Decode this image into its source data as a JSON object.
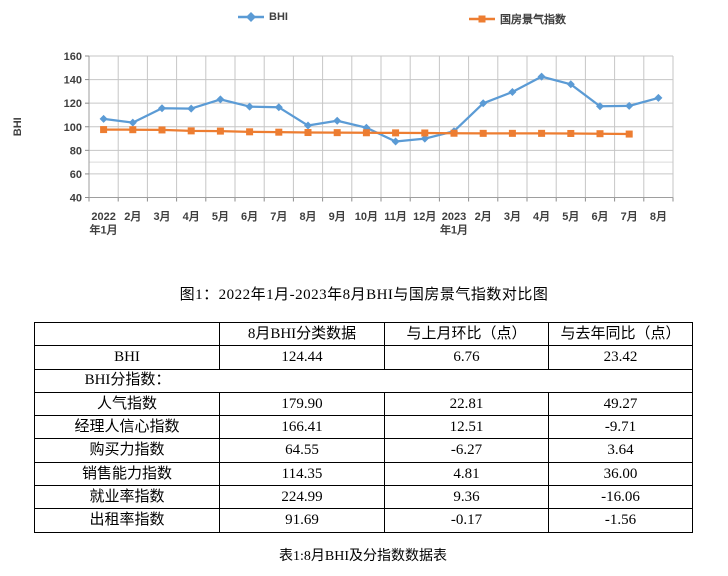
{
  "chart": {
    "figure_caption": "图1：2022年1月-2023年8月BHI与国房景气指数对比图"
  },
  "chart_data": {
    "type": "line",
    "title": "",
    "xlabel": "",
    "ylabel": "BHI",
    "categories": [
      "2022\n年1月",
      "2月",
      "3月",
      "4月",
      "5月",
      "6月",
      "7月",
      "8月",
      "9月",
      "10月",
      "11月",
      "12月",
      "2023\n年1月",
      "2月",
      "3月",
      "4月",
      "5月",
      "6月",
      "7月",
      "8月"
    ],
    "series": [
      {
        "name": "BHI",
        "color": "#5B9BD5",
        "marker": "diamond",
        "values": [
          106.7,
          103.5,
          115.7,
          115.4,
          123.2,
          117.1,
          116.5,
          101.02,
          105.1,
          99.2,
          87.5,
          89.9,
          96.2,
          119.9,
          129.5,
          142.5,
          136.0,
          117.4,
          117.68,
          124.44
        ]
      },
      {
        "name": "国房景气指数",
        "color": "#ED7D31",
        "marker": "square",
        "values": [
          97.6,
          97.5,
          97.3,
          96.5,
          96.3,
          95.7,
          95.4,
          95.1,
          95.0,
          94.9,
          94.8,
          94.7,
          94.5,
          94.4,
          94.4,
          94.4,
          94.3,
          94.1,
          93.8,
          null
        ]
      }
    ],
    "ylim": [
      40,
      160
    ],
    "yticks": [
      40,
      60,
      80,
      100,
      120,
      140,
      160
    ],
    "extra_gridlines": [
      70
    ],
    "grid": true,
    "legend_position": "top"
  },
  "table": {
    "headers": [
      "",
      "8月BHI分类数据",
      "与上月环比（点）",
      "与去年同比（点）"
    ],
    "rows": [
      {
        "label": "BHI",
        "values": [
          "124.44",
          "6.76",
          "23.42"
        ]
      },
      {
        "label": "BHI分指数：",
        "merged": true
      },
      {
        "label": "人气指数",
        "values": [
          "179.90",
          "22.81",
          "49.27"
        ]
      },
      {
        "label": "经理人信心指数",
        "values": [
          "166.41",
          "12.51",
          "-9.71"
        ]
      },
      {
        "label": "购买力指数",
        "values": [
          "64.55",
          "-6.27",
          "3.64"
        ]
      },
      {
        "label": "销售能力指数",
        "values": [
          "114.35",
          "4.81",
          "36.00"
        ]
      },
      {
        "label": "就业率指数",
        "values": [
          "224.99",
          "9.36",
          "-16.06"
        ]
      },
      {
        "label": "出租率指数",
        "values": [
          "91.69",
          "-0.17",
          "-1.56"
        ]
      }
    ],
    "caption": "表1:8月BHI及分指数数据表"
  }
}
